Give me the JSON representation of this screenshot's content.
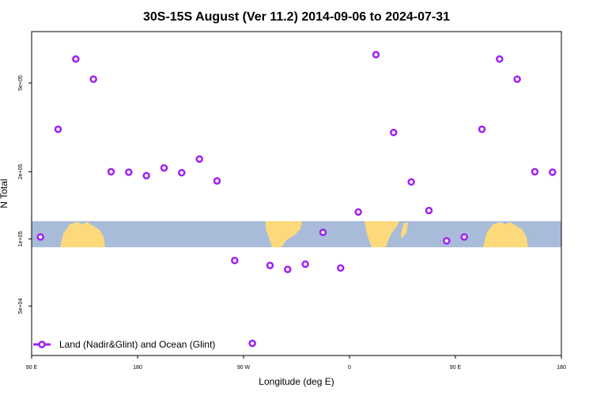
{
  "chart_data": {
    "type": "scatter",
    "title": "30S-15S August (Ver 11.2)   2014-09-06 to 2024-07-31",
    "xlabel": "Longitude (deg E)",
    "ylabel": "N Total",
    "xlim": [
      90,
      540
    ],
    "ylim": [
      30000,
      850000
    ],
    "y_scale": "log",
    "x_ticks": [
      {
        "value": 90,
        "label": "90 E"
      },
      {
        "value": 180,
        "label": "180"
      },
      {
        "value": 270,
        "label": "90 W"
      },
      {
        "value": 360,
        "label": "0"
      },
      {
        "value": 450,
        "label": "90 E"
      },
      {
        "value": 540,
        "label": "180"
      }
    ],
    "y_ticks": [
      {
        "value": 50000,
        "label": "5e+04"
      },
      {
        "value": 100000,
        "label": "1e+05"
      },
      {
        "value": 200000,
        "label": "2e+05"
      },
      {
        "value": 500000,
        "label": "5e+05"
      }
    ],
    "grid": false,
    "legend_position": "bottom-left",
    "series": [
      {
        "name": "Land (Nadir&Glint) and Ocean (Glint)",
        "color": "#a020f0",
        "marker": "open-circle",
        "points": [
          {
            "x": 97.5,
            "y": 102000
          },
          {
            "x": 112.5,
            "y": 310000
          },
          {
            "x": 127.5,
            "y": 640000
          },
          {
            "x": 142.5,
            "y": 520000
          },
          {
            "x": 157.5,
            "y": 200000
          },
          {
            "x": 172.5,
            "y": 199000
          },
          {
            "x": 187.5,
            "y": 192000
          },
          {
            "x": 202.5,
            "y": 208000
          },
          {
            "x": 217.5,
            "y": 198000
          },
          {
            "x": 232.5,
            "y": 228000
          },
          {
            "x": 247.5,
            "y": 182000
          },
          {
            "x": 262.5,
            "y": 80000
          },
          {
            "x": 277.5,
            "y": 34000
          },
          {
            "x": 292.5,
            "y": 76000
          },
          {
            "x": 307.5,
            "y": 73000
          },
          {
            "x": 322.5,
            "y": 77000
          },
          {
            "x": 337.5,
            "y": 107000
          },
          {
            "x": 352.5,
            "y": 74000
          },
          {
            "x": 367.5,
            "y": 132000
          },
          {
            "x": 382.5,
            "y": 670000
          },
          {
            "x": 397.5,
            "y": 300000
          },
          {
            "x": 412.5,
            "y": 180000
          },
          {
            "x": 427.5,
            "y": 134000
          },
          {
            "x": 442.5,
            "y": 98000
          },
          {
            "x": 457.5,
            "y": 102000
          },
          {
            "x": 472.5,
            "y": 310000
          },
          {
            "x": 487.5,
            "y": 640000
          },
          {
            "x": 502.5,
            "y": 520000
          },
          {
            "x": 517.5,
            "y": 200000
          },
          {
            "x": 532.5,
            "y": 199000
          }
        ]
      }
    ],
    "background_band": {
      "description_colors": {
        "ocean": "#a8bcda",
        "land": "#fcd97a"
      }
    }
  }
}
